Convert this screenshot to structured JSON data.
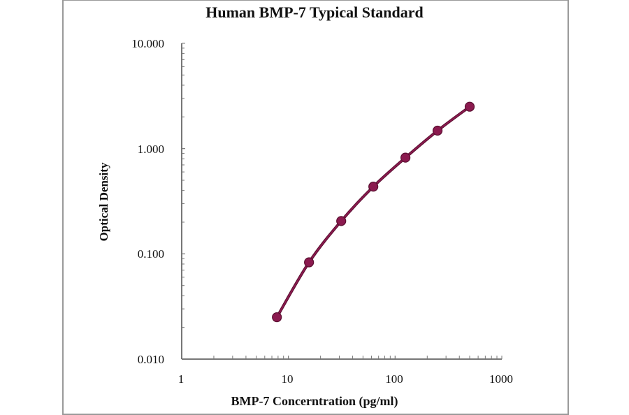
{
  "chart_data": {
    "type": "line",
    "title": "Human BMP-7 Typical Standard",
    "xlabel": "BMP-7 Concerntration (pg/ml)",
    "ylabel": "Optical Density",
    "x_scale": "log",
    "y_scale": "log",
    "xlim": [
      1,
      1000
    ],
    "ylim": [
      0.01,
      10
    ],
    "x_tick_labels": [
      "1",
      "10",
      "100",
      "1000"
    ],
    "y_tick_labels": [
      "10.000",
      "1.000",
      "0.100",
      "0.010"
    ],
    "grid": false,
    "legend": null,
    "series": [
      {
        "name": "Standard",
        "color": "#8b1a4f",
        "marker": "circle",
        "x": [
          7.8,
          15.6,
          31.25,
          62.5,
          125,
          250,
          500
        ],
        "y": [
          0.025,
          0.083,
          0.205,
          0.435,
          0.82,
          1.48,
          2.5
        ]
      }
    ]
  },
  "labels": {
    "title": "Human BMP-7 Typical Standard",
    "xlabel": "BMP-7 Concerntration (pg/ml)",
    "ylabel": "Optical Density",
    "yticks": [
      "10.000",
      "1.000",
      "0.100",
      "0.010"
    ],
    "xticks": [
      "1",
      "10",
      "100",
      "1000"
    ]
  },
  "colors": {
    "series": "#8b1a4f",
    "series_outline": "#5a0f30",
    "axis": "#777777",
    "frame": "#9a9a9a"
  }
}
